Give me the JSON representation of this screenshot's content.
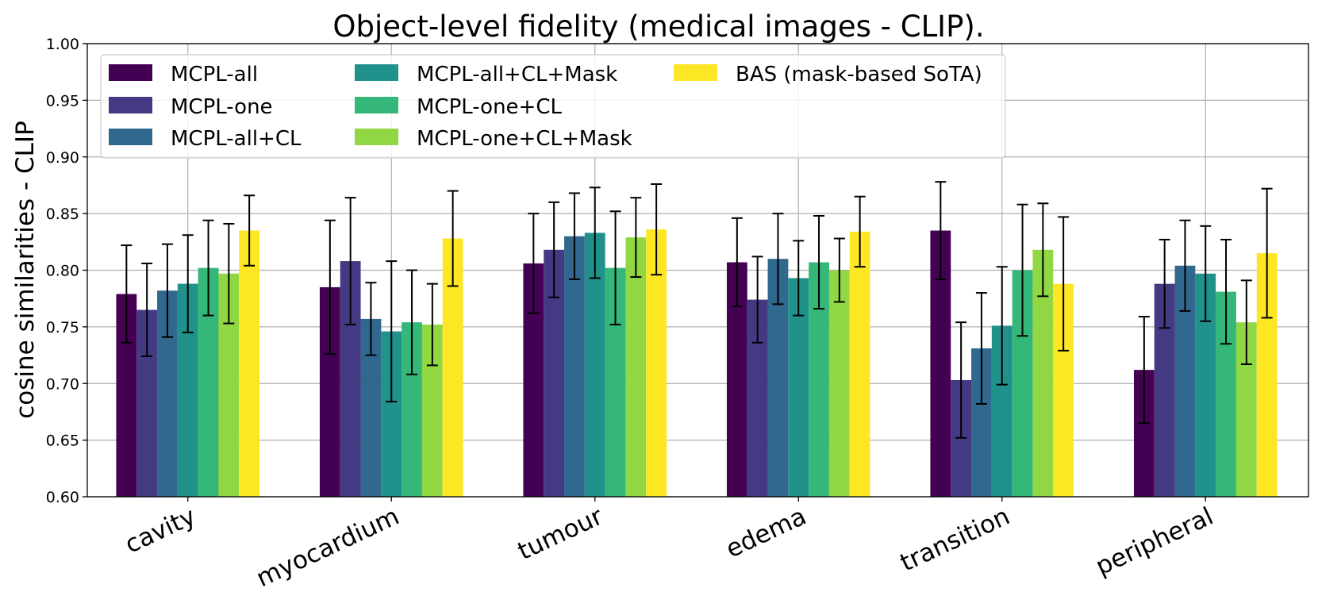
{
  "chart_data": {
    "type": "bar",
    "title": "Object-level fidelity (medical images - CLIP).",
    "xlabel": "",
    "ylabel": "cosine similarities - CLIP",
    "ylim": [
      0.6,
      1.0
    ],
    "yticks": [
      "0.60",
      "0.65",
      "0.70",
      "0.75",
      "0.80",
      "0.85",
      "0.90",
      "0.95",
      "1.00"
    ],
    "grid": true,
    "legend_position": "top-left",
    "categories": [
      "cavity",
      "myocardium",
      "tumour",
      "edema",
      "transition",
      "peripheral"
    ],
    "series": [
      {
        "name": "MCPL-all",
        "color": "#440154",
        "values": [
          0.779,
          0.785,
          0.806,
          0.807,
          0.835,
          0.712
        ],
        "errors": [
          0.043,
          0.059,
          0.044,
          0.039,
          0.043,
          0.047
        ]
      },
      {
        "name": "MCPL-one",
        "color": "#443983",
        "values": [
          0.765,
          0.808,
          0.818,
          0.774,
          0.703,
          0.788
        ],
        "errors": [
          0.041,
          0.056,
          0.042,
          0.038,
          0.051,
          0.039
        ]
      },
      {
        "name": "MCPL-all+CL",
        "color": "#31688e",
        "values": [
          0.782,
          0.757,
          0.83,
          0.81,
          0.731,
          0.804
        ],
        "errors": [
          0.041,
          0.032,
          0.038,
          0.04,
          0.049,
          0.04
        ]
      },
      {
        "name": "MCPL-all+CL+Mask",
        "color": "#21918c",
        "values": [
          0.788,
          0.746,
          0.833,
          0.793,
          0.751,
          0.797
        ],
        "errors": [
          0.043,
          0.062,
          0.04,
          0.033,
          0.052,
          0.042
        ]
      },
      {
        "name": "MCPL-one+CL",
        "color": "#35b779",
        "values": [
          0.802,
          0.754,
          0.802,
          0.807,
          0.8,
          0.781
        ],
        "errors": [
          0.042,
          0.046,
          0.05,
          0.041,
          0.058,
          0.046
        ]
      },
      {
        "name": "MCPL-one+CL+Mask",
        "color": "#90d743",
        "values": [
          0.797,
          0.752,
          0.829,
          0.8,
          0.818,
          0.754
        ],
        "errors": [
          0.044,
          0.036,
          0.035,
          0.028,
          0.041,
          0.037
        ]
      },
      {
        "name": "BAS (mask-based SoTA)",
        "color": "#fde725",
        "values": [
          0.835,
          0.828,
          0.836,
          0.834,
          0.788,
          0.815
        ],
        "errors": [
          0.031,
          0.042,
          0.04,
          0.031,
          0.059,
          0.057
        ]
      }
    ]
  }
}
